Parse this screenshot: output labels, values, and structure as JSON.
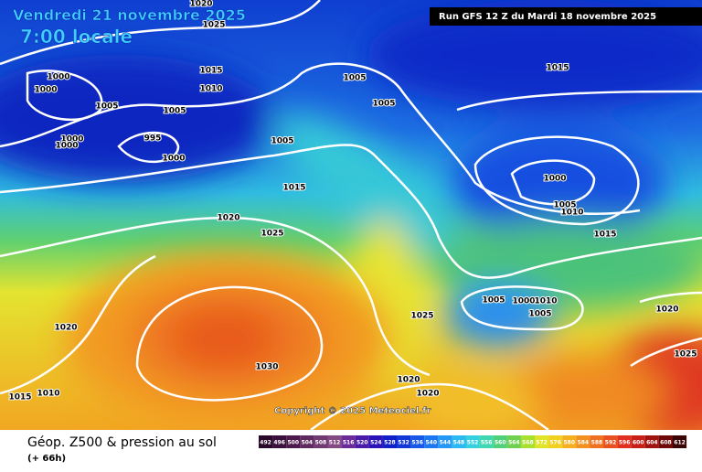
{
  "header": {
    "date": "Vendredi 21 novembre 2025",
    "time": "7:00 locale",
    "run": "Run GFS 12 Z du Mardi 18 novembre 2025"
  },
  "copyright": "Copyright © 2025 Meteociel.fr",
  "footer": {
    "title": "Géop. Z500 & pression au sol",
    "lead": "(+ 66h)"
  },
  "isobar_labels": [
    1020,
    1025,
    1000,
    1000,
    1005,
    1015,
    1010,
    1005,
    995,
    1000,
    1000,
    1000,
    1005,
    1005,
    1005,
    1015,
    1020,
    1025,
    1015,
    1000,
    1005,
    1010,
    1015,
    1020,
    1025,
    1005,
    1000,
    1010,
    1005,
    1020,
    1030,
    1025,
    1015,
    1010,
    1020,
    1020
  ],
  "legend": {
    "ticks": [
      492,
      496,
      500,
      504,
      508,
      512,
      516,
      520,
      524,
      528,
      532,
      536,
      540,
      544,
      548,
      552,
      556,
      560,
      564,
      568,
      572,
      576,
      580,
      584,
      588,
      592,
      596,
      600,
      604,
      608,
      612
    ]
  }
}
